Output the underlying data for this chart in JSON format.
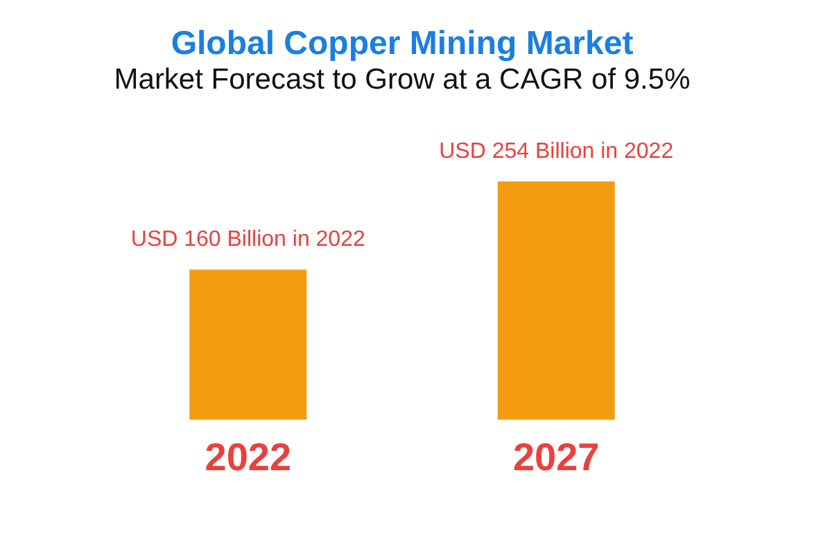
{
  "chart_data": {
    "type": "bar",
    "title": "Global Copper Mining Market",
    "subtitle": "Market Forecast to Grow at a CAGR of 9.5%",
    "categories": [
      "2022",
      "2027"
    ],
    "series": [
      {
        "color": "#f39c12",
        "values": [
          160,
          254
        ],
        "value_labels": [
          "USD 160 Billion in 2022",
          "USD 254 Billion in 2022"
        ]
      }
    ]
  }
}
